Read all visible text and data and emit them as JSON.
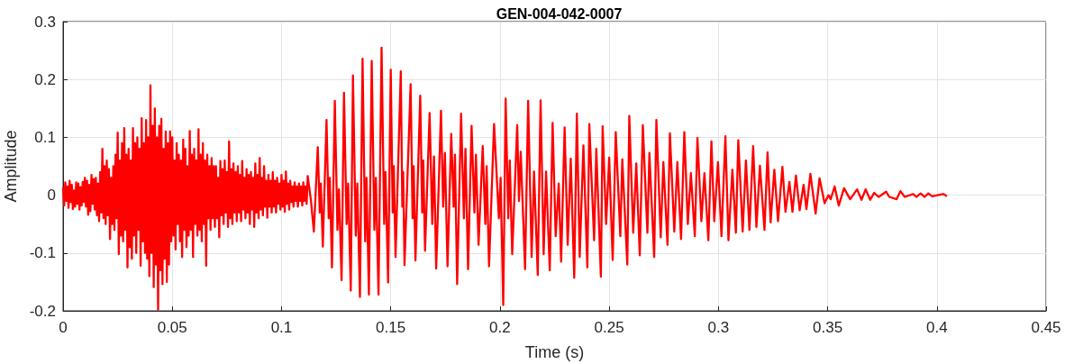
{
  "chart_data": {
    "type": "line",
    "title": "GEN-004-042-0007",
    "xlabel": "Time (s)",
    "ylabel": "Amplitude",
    "color": "#ff0000",
    "line_style": "solid",
    "grid": true,
    "xlim": [
      0,
      0.45
    ],
    "xticks": [
      0,
      0.05,
      0.1,
      0.15,
      0.2,
      0.25,
      0.3,
      0.35,
      0.4,
      0.45
    ],
    "ylim": [
      -0.2,
      0.3
    ],
    "yticks": [
      -0.2,
      -0.1,
      0,
      0.1,
      0.2,
      0.3
    ],
    "x": [
      0,
      0.0005,
      0.001,
      0.0015,
      0.002,
      0.0025,
      0.003,
      0.0035,
      0.004,
      0.0045,
      0.005,
      0.0055,
      0.006,
      0.0065,
      0.007,
      0.0075,
      0.008,
      0.0085,
      0.009,
      0.0095,
      0.01,
      0.0105,
      0.011,
      0.0115,
      0.012,
      0.0125,
      0.013,
      0.0135,
      0.014,
      0.0145,
      0.015,
      0.0155,
      0.016,
      0.0165,
      0.017,
      0.0175,
      0.018,
      0.0185,
      0.019,
      0.0195,
      0.02,
      0.0205,
      0.021,
      0.0215,
      0.022,
      0.0225,
      0.023,
      0.0235,
      0.024,
      0.0245,
      0.025,
      0.0255,
      0.026,
      0.0265,
      0.027,
      0.0275,
      0.028,
      0.0285,
      0.029,
      0.0295,
      0.03,
      0.0305,
      0.031,
      0.0315,
      0.032,
      0.0325,
      0.033,
      0.0335,
      0.034,
      0.0345,
      0.035,
      0.0355,
      0.036,
      0.0365,
      0.037,
      0.0375,
      0.038,
      0.0385,
      0.039,
      0.0395,
      0.04,
      0.0405,
      0.041,
      0.0415,
      0.042,
      0.0425,
      0.043,
      0.0435,
      0.044,
      0.0445,
      0.045,
      0.0455,
      0.046,
      0.0465,
      0.047,
      0.0475,
      0.048,
      0.0485,
      0.049,
      0.0495,
      0.05,
      0.0505,
      0.051,
      0.0515,
      0.052,
      0.0525,
      0.053,
      0.0535,
      0.054,
      0.0545,
      0.055,
      0.0555,
      0.056,
      0.0565,
      0.057,
      0.0575,
      0.058,
      0.0585,
      0.059,
      0.0595,
      0.06,
      0.0605,
      0.061,
      0.0615,
      0.062,
      0.0625,
      0.063,
      0.0635,
      0.064,
      0.0645,
      0.065,
      0.0655,
      0.066,
      0.0665,
      0.067,
      0.0675,
      0.068,
      0.0685,
      0.069,
      0.0695,
      0.07,
      0.0705,
      0.071,
      0.0715,
      0.072,
      0.0725,
      0.073,
      0.0735,
      0.074,
      0.0745,
      0.075,
      0.0755,
      0.076,
      0.0765,
      0.077,
      0.0775,
      0.078,
      0.0785,
      0.079,
      0.0795,
      0.08,
      0.0805,
      0.081,
      0.0815,
      0.082,
      0.0825,
      0.083,
      0.0835,
      0.084,
      0.0845,
      0.085,
      0.0855,
      0.086,
      0.0865,
      0.087,
      0.0875,
      0.088,
      0.0885,
      0.089,
      0.0895,
      0.09,
      0.0905,
      0.091,
      0.0915,
      0.092,
      0.0925,
      0.093,
      0.0935,
      0.094,
      0.0945,
      0.095,
      0.0955,
      0.096,
      0.0965,
      0.097,
      0.0975,
      0.098,
      0.0985,
      0.099,
      0.0995,
      0.1,
      0.1005,
      0.101,
      0.1015,
      0.102,
      0.1025,
      0.103,
      0.1035,
      0.104,
      0.1045,
      0.105,
      0.1055,
      0.106,
      0.1065,
      0.107,
      0.1075,
      0.108,
      0.1085,
      0.109,
      0.1095,
      0.11,
      0.1105,
      0.111,
      0.1115,
      0.112,
      0.1135,
      0.1148,
      0.1166,
      0.1175,
      0.118,
      0.1189,
      0.1206,
      0.1216,
      0.1221,
      0.1231,
      0.1244,
      0.1256,
      0.1263,
      0.1275,
      0.1286,
      0.1298,
      0.1305,
      0.1317,
      0.1327,
      0.134,
      0.1347,
      0.1359,
      0.1371,
      0.1383,
      0.1389,
      0.14,
      0.1413,
      0.1425,
      0.1432,
      0.1444,
      0.1458,
      0.147,
      0.1476,
      0.1488,
      0.15,
      0.1509,
      0.1514,
      0.1522,
      0.1546,
      0.1553,
      0.1557,
      0.1563,
      0.1591,
      0.16,
      0.1605,
      0.1613,
      0.1635,
      0.1644,
      0.1649,
      0.1657,
      0.1678,
      0.169,
      0.1698,
      0.1708,
      0.173,
      0.174,
      0.1748,
      0.176,
      0.1777,
      0.1788,
      0.1794,
      0.1804,
      0.1822,
      0.1835,
      0.1842,
      0.1854,
      0.187,
      0.1883,
      0.189,
      0.1902,
      0.1921,
      0.1933,
      0.1939,
      0.195,
      0.1973,
      0.1995,
      0.2003,
      0.2015,
      0.2026,
      0.2038,
      0.2045,
      0.2056,
      0.2079,
      0.2087,
      0.2095,
      0.2115,
      0.2129,
      0.2145,
      0.2156,
      0.2173,
      0.2186,
      0.22,
      0.2211,
      0.2228,
      0.2241,
      0.2255,
      0.2269,
      0.228,
      0.2296,
      0.231,
      0.2324,
      0.234,
      0.2352,
      0.2365,
      0.2382,
      0.24,
      0.2409,
      0.2431,
      0.2441,
      0.2462,
      0.247,
      0.2486,
      0.25,
      0.2516,
      0.253,
      0.2551,
      0.256,
      0.2583,
      0.2592,
      0.261,
      0.2624,
      0.264,
      0.2654,
      0.2675,
      0.2684,
      0.2706,
      0.2716,
      0.2736,
      0.2748,
      0.2767,
      0.2778,
      0.2798,
      0.2812,
      0.2829,
      0.2844,
      0.286,
      0.2874,
      0.2892,
      0.2904,
      0.2922,
      0.2936,
      0.2954,
      0.2968,
      0.2981,
      0.2998,
      0.3014,
      0.3032,
      0.3046,
      0.3064,
      0.308,
      0.3091,
      0.3111,
      0.3126,
      0.3142,
      0.3159,
      0.3174,
      0.319,
      0.3211,
      0.3225,
      0.3239,
      0.3256,
      0.3273,
      0.3293,
      0.3307,
      0.3325,
      0.3339,
      0.3355,
      0.3372,
      0.339,
      0.3403,
      0.3421,
      0.3445,
      0.3463,
      0.3486,
      0.3504,
      0.3514,
      0.3532,
      0.3551,
      0.3575,
      0.3603,
      0.3635,
      0.3655,
      0.3674,
      0.3695,
      0.3713,
      0.3734,
      0.3768,
      0.3782,
      0.3816,
      0.3833,
      0.3853,
      0.3892,
      0.3906,
      0.3926,
      0.3944,
      0.3961,
      0.3978,
      0.4029,
      0.4043
    ],
    "values": [
      0.012,
      -0.018,
      0.022,
      -0.01,
      0.015,
      -0.022,
      0.025,
      -0.012,
      0.018,
      -0.024,
      0.008,
      -0.02,
      0.022,
      -0.015,
      0.02,
      -0.025,
      0.014,
      -0.018,
      0.023,
      -0.012,
      0.03,
      -0.02,
      0.025,
      -0.034,
      0.018,
      -0.028,
      0.035,
      -0.015,
      0.028,
      -0.025,
      0.03,
      -0.035,
      0.02,
      -0.045,
      0.04,
      -0.03,
      0.08,
      -0.04,
      0.05,
      -0.05,
      0.06,
      -0.035,
      0.045,
      -0.076,
      0.03,
      -0.05,
      0.05,
      -0.06,
      0.07,
      -0.04,
      0.108,
      -0.102,
      0.06,
      -0.07,
      0.09,
      -0.08,
      0.116,
      -0.06,
      0.07,
      -0.125,
      0.08,
      -0.09,
      0.06,
      -0.11,
      0.116,
      -0.07,
      0.09,
      -0.1,
      0.1,
      -0.06,
      0.08,
      -0.122,
      0.133,
      -0.08,
      0.09,
      -0.1,
      0.13,
      -0.11,
      0.1,
      -0.14,
      0.19,
      -0.1,
      0.12,
      -0.159,
      0.15,
      -0.12,
      0.1,
      -0.198,
      0.12,
      -0.13,
      0.132,
      -0.154,
      0.08,
      -0.11,
      0.11,
      -0.15,
      0.09,
      -0.12,
      0.11,
      -0.08,
      0.1,
      -0.07,
      0.06,
      -0.094,
      0.09,
      -0.05,
      0.07,
      -0.08,
      0.06,
      -0.107,
      0.096,
      -0.06,
      0.08,
      -0.09,
      0.05,
      -0.07,
      0.111,
      -0.06,
      0.07,
      -0.107,
      0.08,
      -0.05,
      0.06,
      -0.07,
      0.114,
      -0.06,
      0.07,
      -0.08,
      0.09,
      -0.05,
      0.06,
      -0.122,
      0.07,
      -0.04,
      0.05,
      -0.06,
      0.064,
      -0.04,
      0.05,
      -0.055,
      0.05,
      -0.04,
      0.03,
      -0.073,
      0.059,
      -0.035,
      0.045,
      -0.05,
      0.06,
      -0.03,
      0.04,
      -0.055,
      0.093,
      -0.04,
      0.045,
      -0.05,
      0.055,
      -0.03,
      0.04,
      -0.045,
      0.05,
      -0.03,
      0.035,
      -0.045,
      0.059,
      -0.025,
      0.03,
      -0.04,
      0.045,
      -0.03,
      0.035,
      -0.05,
      0.04,
      -0.025,
      0.03,
      -0.055,
      0.055,
      -0.03,
      0.035,
      -0.04,
      0.064,
      -0.025,
      0.03,
      -0.035,
      0.05,
      -0.02,
      0.025,
      -0.039,
      0.035,
      -0.02,
      0.025,
      -0.03,
      0.04,
      -0.02,
      0.025,
      -0.03,
      0.03,
      -0.015,
      0.02,
      -0.025,
      0.035,
      -0.02,
      0.025,
      -0.029,
      0.041,
      -0.015,
      0.02,
      -0.025,
      0.025,
      -0.012,
      0.015,
      -0.02,
      0.022,
      -0.01,
      0.015,
      -0.02,
      0.02,
      -0.01,
      0.015,
      -0.018,
      0.022,
      -0.01,
      0.015,
      -0.015,
      0.033,
      -0.01,
      -0.063,
      0.083,
      -0.03,
      0.02,
      -0.089,
      0.13,
      -0.04,
      0.03,
      -0.125,
      0.163,
      -0.06,
      0.01,
      -0.147,
      0.177,
      -0.05,
      0.02,
      -0.165,
      0.207,
      -0.07,
      0.02,
      -0.176,
      0.236,
      -0.08,
      0.03,
      -0.172,
      0.232,
      -0.06,
      0.03,
      -0.172,
      0.255,
      -0.05,
      0.04,
      -0.151,
      0.217,
      -0.03,
      0.05,
      -0.107,
      0.214,
      -0.02,
      0.04,
      -0.121,
      0.192,
      -0.04,
      0.05,
      -0.113,
      0.172,
      -0.03,
      0.06,
      -0.096,
      0.142,
      -0.05,
      0.067,
      -0.127,
      0.146,
      -0.02,
      0.073,
      -0.123,
      0.106,
      -0.02,
      0.07,
      -0.154,
      0.141,
      -0.04,
      0.08,
      -0.128,
      0.12,
      -0.03,
      0.07,
      -0.086,
      0.085,
      -0.05,
      0.05,
      -0.123,
      0.123,
      -0.04,
      0.03,
      -0.19,
      0.167,
      -0.04,
      0.06,
      -0.102,
      0.121,
      -0.01,
      0.075,
      -0.128,
      0.163,
      -0.107,
      0.041,
      -0.138,
      0.164,
      -0.102,
      0.041,
      -0.13,
      0.125,
      -0.071,
      0.02,
      -0.115,
      0.117,
      -0.086,
      0.063,
      -0.143,
      0.141,
      -0.107,
      0.086,
      -0.125,
      0.123,
      -0.078,
      0.08,
      -0.141,
      0.119,
      -0.05,
      0.065,
      -0.112,
      0.109,
      -0.071,
      0.062,
      -0.12,
      0.137,
      -0.065,
      0.055,
      -0.104,
      0.121,
      -0.065,
      0.073,
      -0.107,
      0.13,
      -0.073,
      0.057,
      -0.086,
      0.107,
      -0.063,
      0.057,
      -0.076,
      0.109,
      -0.05,
      0.038,
      -0.071,
      0.099,
      -0.045,
      0.038,
      -0.078,
      0.093,
      -0.045,
      0.057,
      -0.071,
      0.102,
      -0.078,
      0.044,
      -0.065,
      0.095,
      -0.063,
      0.06,
      -0.06,
      0.085,
      -0.055,
      0.051,
      -0.06,
      0.074,
      -0.047,
      0.044,
      -0.045,
      0.049,
      -0.029,
      0.023,
      -0.029,
      0.034,
      -0.026,
      0.018,
      -0.024,
      0.037,
      -0.032,
      0.029,
      -0.014,
      0,
      -0.007,
      0.015,
      -0.018,
      0.012,
      -0.007,
      0.01,
      -0.008,
      0.01,
      -0.008,
      0.004,
      -0.003,
      0.006,
      -0.003,
      -0.007,
      0.007,
      -0.003,
      0.002,
      -0.003,
      0.003,
      -0.003,
      0.003,
      -0.002,
      0.002,
      -0.001
    ]
  }
}
